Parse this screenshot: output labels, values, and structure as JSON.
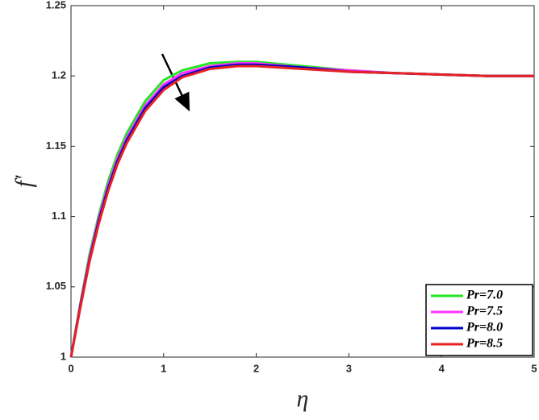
{
  "chart_data": {
    "type": "line",
    "x_label": "η",
    "y_label": "f′",
    "x": [
      0,
      0.1,
      0.2,
      0.3,
      0.4,
      0.5,
      0.6,
      0.8,
      1,
      1.2,
      1.5,
      1.8,
      2,
      2.5,
      3,
      3.5,
      4,
      4.5,
      5
    ],
    "series": [
      {
        "name": "Pr=7.0",
        "color": "#22e622",
        "values": [
          1,
          1.038,
          1.073,
          1.101,
          1.125,
          1.144,
          1.159,
          1.182,
          1.197,
          1.204,
          1.209,
          1.21,
          1.21,
          1.207,
          1.204,
          1.202,
          1.201,
          1.2,
          1.2
        ]
      },
      {
        "name": "Pr=7.5",
        "color": "#ff33ff",
        "values": [
          1,
          1.037,
          1.071,
          1.099,
          1.122,
          1.141,
          1.156,
          1.179,
          1.194,
          1.202,
          1.207,
          1.209,
          1.209,
          1.206,
          1.204,
          1.202,
          1.201,
          1.2,
          1.2
        ]
      },
      {
        "name": "Pr=8.0",
        "color": "#0000cc",
        "values": [
          1,
          1.036,
          1.069,
          1.097,
          1.12,
          1.139,
          1.154,
          1.177,
          1.192,
          1.2,
          1.206,
          1.208,
          1.208,
          1.206,
          1.203,
          1.202,
          1.201,
          1.2,
          1.2
        ]
      },
      {
        "name": "Pr=8.5",
        "color": "#e62222",
        "values": [
          1,
          1.035,
          1.068,
          1.095,
          1.118,
          1.137,
          1.152,
          1.175,
          1.19,
          1.199,
          1.205,
          1.207,
          1.207,
          1.205,
          1.203,
          1.202,
          1.201,
          1.2,
          1.2
        ]
      }
    ],
    "xlim": [
      0,
      5
    ],
    "xticks": [
      0,
      1,
      2,
      3,
      4,
      5
    ],
    "ylim": [
      1,
      1.25
    ],
    "yticks": [
      1,
      1.05,
      1.1,
      1.15,
      1.2,
      1.25
    ],
    "legend": "lower right"
  }
}
